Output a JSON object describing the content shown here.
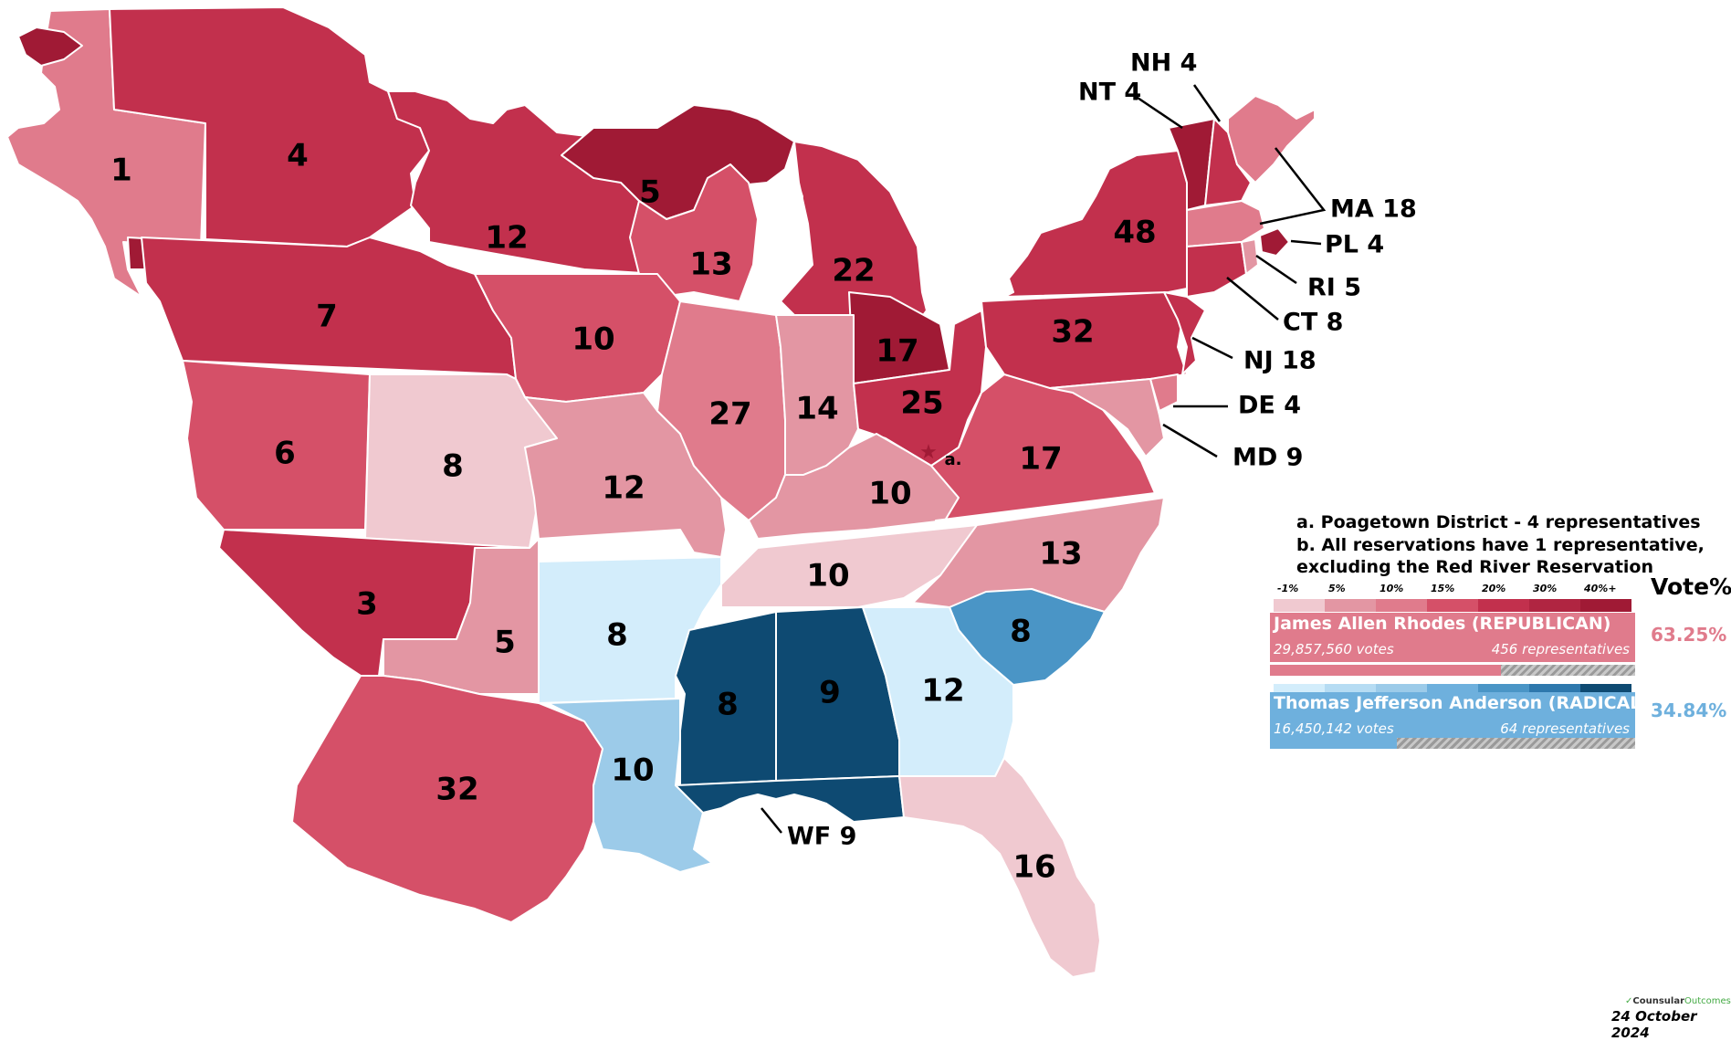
{
  "states": [
    {
      "id": "nw-enclave",
      "label": "",
      "color": "#a01a35"
    },
    {
      "id": "wa",
      "label": "1",
      "color": "#e07b8c"
    },
    {
      "id": "nw-res",
      "label": "",
      "color": "#a01a35"
    },
    {
      "id": "mt",
      "label": "4",
      "color": "#c2304d"
    },
    {
      "id": "nd",
      "label": "12",
      "color": "#c2304d"
    },
    {
      "id": "ne",
      "label": "7",
      "color": "#c2304d"
    },
    {
      "id": "wi",
      "label": "5",
      "color": "#a01a35"
    },
    {
      "id": "mi-up",
      "label": "13",
      "color": "#d55068"
    },
    {
      "id": "ia",
      "label": "10",
      "color": "#d55068"
    },
    {
      "id": "mi",
      "label": "22",
      "color": "#c2304d"
    },
    {
      "id": "oh-nw",
      "label": "17",
      "color": "#a01a35"
    },
    {
      "id": "co",
      "label": "6",
      "color": "#d55068"
    },
    {
      "id": "ks",
      "label": "8",
      "color": "#f0c9d0"
    },
    {
      "id": "mo",
      "label": "12",
      "color": "#e396a3"
    },
    {
      "id": "il",
      "label": "27",
      "color": "#e07b8c"
    },
    {
      "id": "in",
      "label": "14",
      "color": "#e396a3"
    },
    {
      "id": "oh",
      "label": "25",
      "color": "#c2304d"
    },
    {
      "id": "ky",
      "label": "10",
      "color": "#e396a3"
    },
    {
      "id": "va",
      "label": "17",
      "color": "#d55068"
    },
    {
      "id": "pa",
      "label": "32",
      "color": "#c2304d"
    },
    {
      "id": "ny",
      "label": "48",
      "color": "#c2304d"
    },
    {
      "id": "vt",
      "label": "",
      "color": "#a01a35"
    },
    {
      "id": "nh",
      "label": "",
      "color": "#c2304d"
    },
    {
      "id": "me",
      "label": "",
      "color": "#e07b8c"
    },
    {
      "id": "ma",
      "label": "",
      "color": "#e07b8c"
    },
    {
      "id": "ct",
      "label": "",
      "color": "#c2304d"
    },
    {
      "id": "ri",
      "label": "",
      "color": "#e396a3"
    },
    {
      "id": "pl",
      "label": "",
      "color": "#a01a35"
    },
    {
      "id": "nj",
      "label": "",
      "color": "#c2304d"
    },
    {
      "id": "de",
      "label": "",
      "color": "#e07b8c"
    },
    {
      "id": "md",
      "label": "",
      "color": "#e396a3"
    },
    {
      "id": "ok",
      "label": "3",
      "color": "#c2304d"
    },
    {
      "id": "ar-w",
      "label": "5",
      "color": "#e396a3"
    },
    {
      "id": "ar",
      "label": "8",
      "color": "#d3edfb"
    },
    {
      "id": "tn",
      "label": "10",
      "color": "#f0c9d0"
    },
    {
      "id": "nc",
      "label": "13",
      "color": "#e396a3"
    },
    {
      "id": "sc",
      "label": "8",
      "color": "#4a95c6"
    },
    {
      "id": "ms",
      "label": "8",
      "color": "#0e4a72"
    },
    {
      "id": "al",
      "label": "9",
      "color": "#0e4a72"
    },
    {
      "id": "ga",
      "label": "12",
      "color": "#d3edfb"
    },
    {
      "id": "la",
      "label": "10",
      "color": "#9ccbe9"
    },
    {
      "id": "tx",
      "label": "32",
      "color": "#d55068"
    },
    {
      "id": "wf",
      "label": "",
      "color": "#0e4a72"
    },
    {
      "id": "fl",
      "label": "16",
      "color": "#f0c9d0"
    }
  ],
  "callouts": [
    {
      "id": "nh",
      "text": "NH 4"
    },
    {
      "id": "nt",
      "text": "NT 4"
    },
    {
      "id": "ma",
      "text": "MA 18"
    },
    {
      "id": "pl",
      "text": "PL 4"
    },
    {
      "id": "ri",
      "text": "RI 5"
    },
    {
      "id": "ct",
      "text": "CT 8"
    },
    {
      "id": "nj",
      "text": "NJ 18"
    },
    {
      "id": "de",
      "text": "DE 4"
    },
    {
      "id": "md",
      "text": "MD 9"
    },
    {
      "id": "wf",
      "text": "WF 9"
    }
  ],
  "poagetown_marker": {
    "symbol": "★",
    "label": "a.",
    "color": "#a01a35"
  },
  "notes": {
    "a": "a. Poagetown District - 4 representatives",
    "b1": "b. All reservations have 1 representative,",
    "b2": "excluding the Red River Reservation"
  },
  "legend": {
    "vote_title": "Vote%",
    "ticks": [
      "-1%",
      "5%",
      "10%",
      "15%",
      "20%",
      "30%",
      "40%+"
    ],
    "rep_colors": [
      "#f0c9d0",
      "#e396a3",
      "#e07b8c",
      "#d55068",
      "#c2304d",
      "#b02541",
      "#a01a35"
    ],
    "rad_colors": [
      "#d3edfb",
      "#b6dcf3",
      "#9ccbe9",
      "#6eb0dd",
      "#4a95c6",
      "#2e78ad",
      "#0e4a72"
    ]
  },
  "candidates": [
    {
      "name": "James Allen Rhodes (REPUBLICAN)",
      "votes": "29,857,560 votes",
      "reps": "456 representatives",
      "pct": "63.25%",
      "share": 0.6325,
      "color": "#e07b8c",
      "bar_color": "#e07b8c"
    },
    {
      "name": "Thomas Jefferson Anderson (RADICAL)",
      "votes": "16,450,142 votes",
      "reps": "64 representatives",
      "pct": "34.84%",
      "share": 0.3484,
      "color": "#6eb0dd",
      "bar_color": "#6eb0dd"
    }
  ],
  "credit": {
    "brand": "Counsular",
    "brand2": "Outcomes"
  },
  "date": "24 October  2024"
}
